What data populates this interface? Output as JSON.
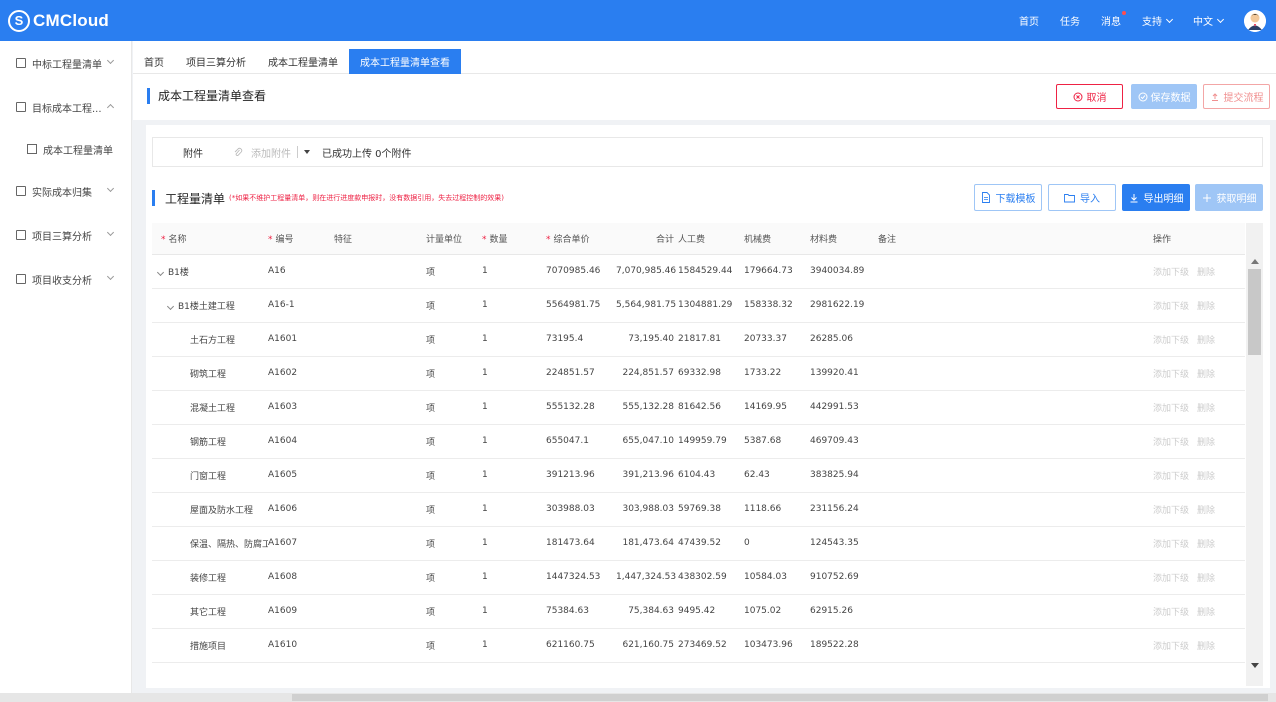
{
  "app": {
    "logo": "CMCloud",
    "logo_mark": "S"
  },
  "topnav": [
    {
      "label": "首页"
    },
    {
      "label": "任务"
    },
    {
      "label": "消息",
      "dot": true
    },
    {
      "label": "支持",
      "dropdown": true
    },
    {
      "label": "中文",
      "dropdown": true
    }
  ],
  "sidebar": {
    "items": [
      {
        "label": "中标工程量清单"
      },
      {
        "label": "目标成本工程...",
        "expanded": true
      },
      {
        "label": "实际成本归集"
      },
      {
        "label": "项目三算分析"
      },
      {
        "label": "项目收支分析"
      }
    ],
    "sub_item": "成本工程量清单"
  },
  "tabs": [
    {
      "label": "首页"
    },
    {
      "label": "项目三算分析"
    },
    {
      "label": "成本工程量清单"
    },
    {
      "label": "成本工程量清单查看",
      "active": true
    }
  ],
  "page": {
    "title": "成本工程量清单查看",
    "cancel": "取消",
    "save": "保存数据",
    "submit": "提交流程"
  },
  "attachment": {
    "label": "附件",
    "add": "添加附件",
    "status": "已成功上传 0个附件"
  },
  "section": {
    "title": "工程量清单",
    "hint": "(*如果不维护工程量清单，则在进行进度款申报时，没有数据引用，失去过程控制的效果)",
    "download": "下载模板",
    "import": "导入",
    "export": "导出明细",
    "fetch": "获取明细"
  },
  "table": {
    "headers": {
      "name": "名称",
      "code": "编号",
      "feature": "特征",
      "unit": "计量单位",
      "qty": "数量",
      "price": "综合单价",
      "total": "合计",
      "labor": "人工费",
      "machine": "机械费",
      "material": "材料费",
      "remark": "备注",
      "ops": "操作"
    },
    "op_add": "添加下级",
    "op_delete": "删除",
    "rows": [
      {
        "name": "B1楼",
        "code": "A16",
        "unit": "项",
        "qty": "1",
        "price": "7070985.46",
        "total": "7,070,985.46",
        "labor": "1584529.44",
        "machine": "179664.73",
        "material": "3940034.89"
      },
      {
        "name": "B1楼土建工程",
        "code": "A16-1",
        "unit": "项",
        "qty": "1",
        "price": "5564981.75",
        "total": "5,564,981.75",
        "labor": "1304881.29",
        "machine": "158338.32",
        "material": "2981622.19"
      },
      {
        "name": "土石方工程",
        "code": "A1601",
        "unit": "项",
        "qty": "1",
        "price": "73195.4",
        "total": "73,195.40",
        "labor": "21817.81",
        "machine": "20733.37",
        "material": "26285.06"
      },
      {
        "name": "砌筑工程",
        "code": "A1602",
        "unit": "项",
        "qty": "1",
        "price": "224851.57",
        "total": "224,851.57",
        "labor": "69332.98",
        "machine": "1733.22",
        "material": "139920.41"
      },
      {
        "name": "混凝土工程",
        "code": "A1603",
        "unit": "项",
        "qty": "1",
        "price": "555132.28",
        "total": "555,132.28",
        "labor": "81642.56",
        "machine": "14169.95",
        "material": "442991.53"
      },
      {
        "name": "钢筋工程",
        "code": "A1604",
        "unit": "项",
        "qty": "1",
        "price": "655047.1",
        "total": "655,047.10",
        "labor": "149959.79",
        "machine": "5387.68",
        "material": "469709.43"
      },
      {
        "name": "门窗工程",
        "code": "A1605",
        "unit": "项",
        "qty": "1",
        "price": "391213.96",
        "total": "391,213.96",
        "labor": "6104.43",
        "machine": "62.43",
        "material": "383825.94"
      },
      {
        "name": "屋面及防水工程",
        "code": "A1606",
        "unit": "项",
        "qty": "1",
        "price": "303988.03",
        "total": "303,988.03",
        "labor": "59769.38",
        "machine": "1118.66",
        "material": "231156.24"
      },
      {
        "name": "保温、隔热、防腐工程",
        "code": "A1607",
        "unit": "项",
        "qty": "1",
        "price": "181473.64",
        "total": "181,473.64",
        "labor": "47439.52",
        "machine": "0",
        "material": "124543.35"
      },
      {
        "name": "装修工程",
        "code": "A1608",
        "unit": "项",
        "qty": "1",
        "price": "1447324.53",
        "total": "1,447,324.53",
        "labor": "438302.59",
        "machine": "10584.03",
        "material": "910752.69"
      },
      {
        "name": "其它工程",
        "code": "A1609",
        "unit": "项",
        "qty": "1",
        "price": "75384.63",
        "total": "75,384.63",
        "labor": "9495.42",
        "machine": "1075.02",
        "material": "62915.26"
      },
      {
        "name": "措施项目",
        "code": "A1610",
        "unit": "项",
        "qty": "1",
        "price": "621160.75",
        "total": "621,160.75",
        "labor": "273469.52",
        "machine": "103473.96",
        "material": "189522.28"
      }
    ]
  },
  "colors": {
    "primary": "#2a7ef0",
    "danger": "#e24",
    "disabled": "#9fc6f6"
  }
}
